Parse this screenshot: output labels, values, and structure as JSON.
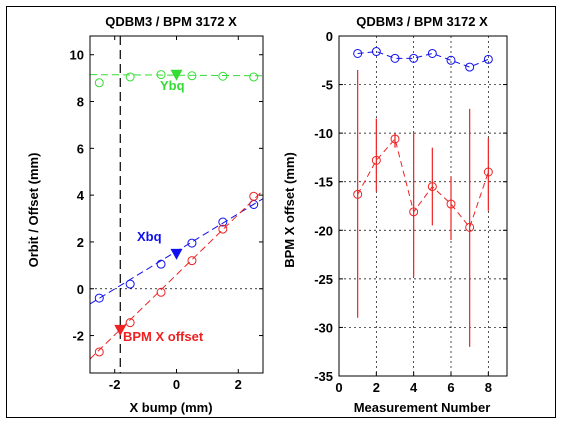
{
  "colors": {
    "green": "#33dd33",
    "blue": "#1010ee",
    "red": "#ee2222",
    "dark_red": "#cc1111",
    "dashed_black": "#000000",
    "grid": "#000000",
    "background": "#ffffff"
  },
  "chart_data": [
    {
      "type": "line",
      "title": "QDBM3 / BPM 3172 X",
      "xlabel": "X bump (mm)",
      "ylabel": "Orbit / Offset (mm)",
      "xlim": [
        -2.8,
        2.8
      ],
      "ylim": [
        -3.6,
        10.8
      ],
      "xticks": [
        -2,
        0,
        2
      ],
      "xtick_labels": [
        "-2",
        "0",
        "2"
      ],
      "yticks": [
        -2,
        0,
        2,
        4,
        6,
        8,
        10
      ],
      "ytick_labels": [
        "-2",
        "0",
        "2",
        "4",
        "6",
        "8",
        "10"
      ],
      "grid": false,
      "zero_line": 0,
      "vertical_marker_x": -1.82,
      "series": [
        {
          "name": "Ybq",
          "color": "#33dd33",
          "marker": "circle",
          "x": [
            -2.5,
            -1.5,
            -0.5,
            0.5,
            1.5,
            2.5
          ],
          "y": [
            8.8,
            9.05,
            9.15,
            9.1,
            9.08,
            9.05
          ],
          "fit": {
            "x": [
              -2.8,
              2.8
            ],
            "y": [
              9.15,
              9.1
            ]
          },
          "triangle": {
            "x": 0.0,
            "y": 9.1
          }
        },
        {
          "name": "Xbq",
          "color": "#1010ee",
          "marker": "circle",
          "x": [
            -2.5,
            -1.5,
            -0.5,
            0.5,
            1.5,
            2.5
          ],
          "y": [
            -0.4,
            0.2,
            1.05,
            1.95,
            2.85,
            3.6
          ],
          "fit": {
            "x": [
              -2.8,
              2.8
            ],
            "y": [
              -0.65,
              3.85
            ]
          },
          "triangle": {
            "x": 0.0,
            "y": 1.45
          }
        },
        {
          "name": "BPM X offset",
          "color": "#ee2222",
          "marker": "circle",
          "x": [
            -2.5,
            -1.5,
            -0.5,
            0.5,
            1.5,
            2.5
          ],
          "y": [
            -2.7,
            -1.45,
            -0.15,
            1.2,
            2.55,
            3.95
          ],
          "fit": {
            "x": [
              -2.8,
              2.8
            ],
            "y": [
              -3.0,
              4.2
            ]
          },
          "triangle": {
            "x": -1.82,
            "y": -1.8
          }
        }
      ],
      "annotations": [
        {
          "text": "Ybq",
          "color": "#33dd33"
        },
        {
          "text": "Xbq",
          "color": "#1010ee"
        },
        {
          "text": "BPM X offset",
          "color": "#ee2222"
        }
      ]
    },
    {
      "type": "line",
      "title": "QDBM3 / BPM 3172 X",
      "xlabel": "Measurement Number",
      "ylabel": "BPM X offset (mm)",
      "xlim": [
        0,
        9
      ],
      "ylim": [
        -35,
        0
      ],
      "xticks": [
        0,
        2,
        4,
        6,
        8
      ],
      "xtick_labels": [
        "0",
        "2",
        "4",
        "6",
        "8"
      ],
      "yticks": [
        0,
        -5,
        -10,
        -15,
        -20,
        -25,
        -30,
        -35
      ],
      "ytick_labels": [
        "0",
        "-5",
        "-10",
        "-15",
        "-20",
        "-25",
        "-30",
        "-35"
      ],
      "grid": true,
      "series": [
        {
          "color": "#1010ee",
          "marker": "circle",
          "x": [
            1,
            2,
            3,
            4,
            5,
            6,
            7,
            8
          ],
          "y": [
            -1.8,
            -1.6,
            -2.3,
            -2.3,
            -1.8,
            -2.5,
            -3.2,
            -2.4
          ]
        },
        {
          "color": "#ee2222",
          "marker": "circle",
          "x": [
            1,
            2,
            3,
            4,
            5,
            6,
            7,
            8
          ],
          "y": [
            -16.3,
            -12.8,
            -10.6,
            -18.1,
            -15.5,
            -17.3,
            -19.7,
            -14.0
          ],
          "error_low": [
            -29.0,
            -16.0,
            -11.5,
            -24.8,
            -19.5,
            -21.0,
            -32.0,
            -18.0
          ],
          "error_high": [
            -3.5,
            -8.5,
            -10.0,
            -10.0,
            -11.5,
            -14.5,
            -7.5,
            -10.5
          ]
        }
      ]
    }
  ]
}
